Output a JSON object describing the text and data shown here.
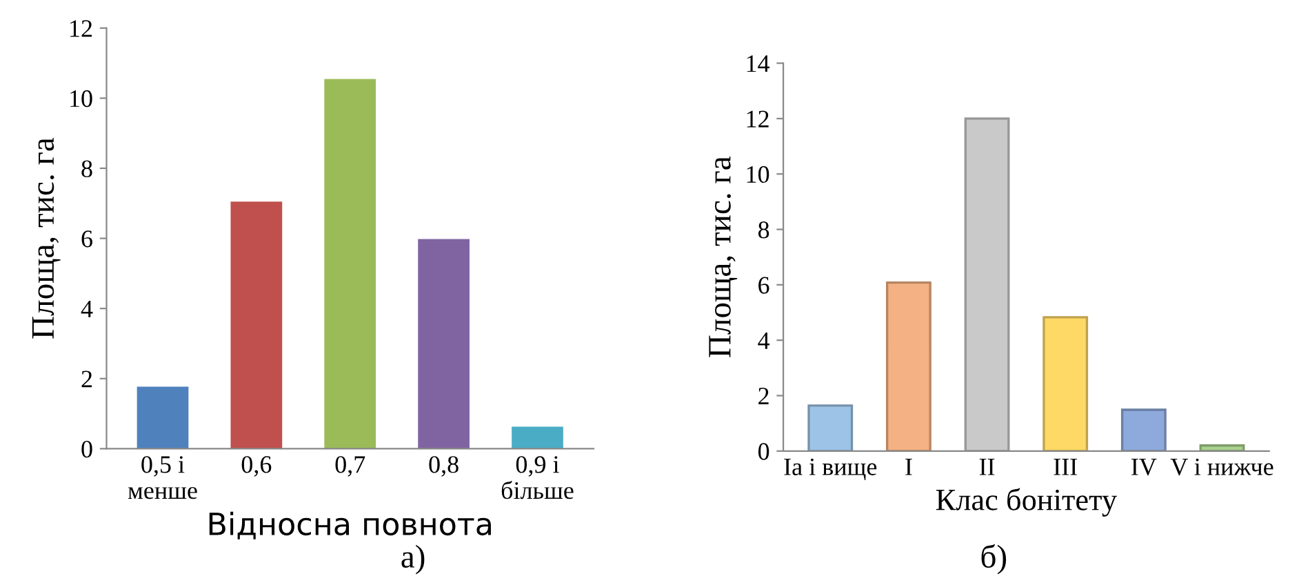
{
  "chart_data": [
    {
      "type": "bar",
      "categories": [
        "0,5 і\nменше",
        "0,6",
        "0,7",
        "0,8",
        "0,9 і\nбільше"
      ],
      "values": [
        1.77,
        7.05,
        10.55,
        5.98,
        0.63
      ],
      "colors": [
        "#4f81bd",
        "#c0504d",
        "#9bbb59",
        "#8064a2",
        "#4bacc6"
      ],
      "ylabel": "Площа, тис. га",
      "xlabel": "Відносна повнота",
      "ylim": [
        0,
        12
      ],
      "yticks": [
        0,
        2,
        4,
        6,
        8,
        10,
        12
      ],
      "grid": false,
      "legend": false,
      "annotations": [
        "а)"
      ]
    },
    {
      "type": "bar",
      "categories": [
        "Ia і вище",
        "I",
        "II",
        "III",
        "IV",
        "V і нижче"
      ],
      "values": [
        1.64,
        6.08,
        12.0,
        4.83,
        1.49,
        0.2
      ],
      "colors": [
        "#9dc3e6",
        "#f4b183",
        "#c9c9c9",
        "#ffd966",
        "#8ea9db",
        "#a9d18e"
      ],
      "ylabel": "Площа, тис. га",
      "xlabel": "Клас бонітету",
      "ylim": [
        0,
        14
      ],
      "yticks": [
        0,
        2,
        4,
        6,
        8,
        10,
        12,
        14
      ],
      "grid": false,
      "legend": false,
      "annotations": [
        "б)"
      ]
    }
  ]
}
